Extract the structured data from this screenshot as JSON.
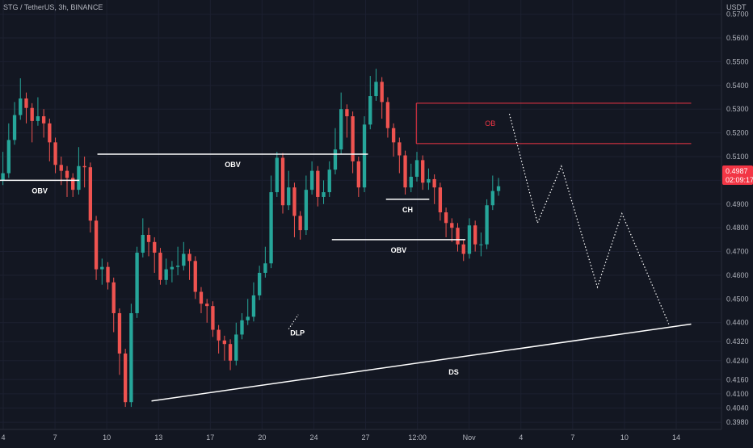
{
  "title": "STG / TetherUS, 3h, BINANCE",
  "chart_data": {
    "type": "candlestick",
    "ylabel": "USDT",
    "ylim": [
      0.395,
      0.576
    ],
    "yticks": [
      "0.5700",
      "0.5600",
      "0.5500",
      "0.5400",
      "0.5300",
      "0.5200",
      "0.5100",
      "0.5000",
      "0.4900",
      "0.4800",
      "0.4700",
      "0.4600",
      "0.4500",
      "0.4400",
      "0.4320",
      "0.4240",
      "0.4160",
      "0.4100",
      "0.4040",
      "0.3980"
    ],
    "xticks": [
      "4",
      "7",
      "10",
      "13",
      "17",
      "20",
      "24",
      "27",
      "12:00",
      "Nov",
      "4",
      "7",
      "10",
      "14"
    ],
    "price_label": {
      "value": "0.4987",
      "countdown": "02:09:17"
    },
    "price_path": [
      [
        0.51,
        0.5
      ],
      [
        0.522,
        0.512
      ],
      [
        0.531,
        0.52
      ],
      [
        0.541,
        0.532
      ],
      [
        0.535,
        0.526
      ],
      [
        0.528,
        0.518
      ],
      [
        0.533,
        0.525
      ],
      [
        0.528,
        0.52
      ],
      [
        0.518,
        0.51
      ],
      [
        0.512,
        0.505
      ],
      [
        0.508,
        0.5
      ],
      [
        0.503,
        0.495
      ],
      [
        0.501,
        0.495
      ],
      [
        0.512,
        0.5
      ],
      [
        0.508,
        0.499
      ],
      [
        0.49,
        0.48
      ],
      [
        0.465,
        0.46
      ],
      [
        0.465,
        0.458
      ],
      [
        0.462,
        0.456
      ],
      [
        0.45,
        0.438
      ],
      [
        0.43,
        0.42
      ],
      [
        0.41,
        0.407
      ],
      [
        0.446,
        0.442
      ],
      [
        0.47,
        0.465
      ],
      [
        0.482,
        0.476
      ],
      [
        0.478,
        0.47
      ],
      [
        0.472,
        0.463
      ],
      [
        0.462,
        0.458
      ],
      [
        0.465,
        0.46
      ],
      [
        0.464,
        0.459
      ],
      [
        0.47,
        0.462
      ],
      [
        0.472,
        0.466
      ],
      [
        0.468,
        0.46
      ],
      [
        0.458,
        0.452
      ],
      [
        0.45,
        0.446
      ],
      [
        0.448,
        0.442
      ],
      [
        0.442,
        0.436
      ],
      [
        0.436,
        0.429
      ],
      [
        0.432,
        0.426
      ],
      [
        0.43,
        0.422
      ],
      [
        0.438,
        0.432
      ],
      [
        0.442,
        0.436
      ],
      [
        0.448,
        0.441
      ],
      [
        0.455,
        0.448
      ],
      [
        0.462,
        0.456
      ],
      [
        0.47,
        0.464
      ],
      [
        0.5,
        0.49
      ],
      [
        0.51,
        0.505
      ],
      [
        0.495,
        0.488
      ],
      [
        0.502,
        0.492
      ],
      [
        0.488,
        0.478
      ],
      [
        0.485,
        0.477
      ],
      [
        0.5,
        0.492
      ],
      [
        0.506,
        0.498
      ],
      [
        0.499,
        0.491
      ],
      [
        0.498,
        0.492
      ],
      [
        0.506,
        0.499
      ],
      [
        0.52,
        0.51
      ],
      [
        0.535,
        0.525
      ],
      [
        0.53,
        0.52
      ],
      [
        0.515,
        0.505
      ],
      [
        0.499,
        0.495
      ],
      [
        0.525,
        0.518
      ],
      [
        0.542,
        0.533
      ],
      [
        0.545,
        0.538
      ],
      [
        0.534,
        0.528
      ],
      [
        0.528,
        0.52
      ],
      [
        0.52,
        0.512
      ],
      [
        0.512,
        0.505
      ],
      [
        0.502,
        0.496
      ],
      [
        0.505,
        0.498
      ],
      [
        0.51,
        0.503
      ],
      [
        0.504,
        0.498
      ],
      [
        0.503,
        0.498
      ],
      [
        0.498,
        0.492
      ],
      [
        0.492,
        0.485
      ],
      [
        0.486,
        0.478
      ],
      [
        0.48,
        0.476
      ],
      [
        0.478,
        0.472
      ],
      [
        0.47,
        0.468
      ],
      [
        0.482,
        0.476
      ],
      [
        0.478,
        0.472
      ],
      [
        0.476,
        0.47
      ],
      [
        0.49,
        0.485
      ],
      [
        0.5,
        0.495
      ],
      [
        0.499,
        0.496
      ]
    ],
    "annotations": [
      {
        "label": "OBV",
        "y_value": 0.5,
        "x_range": [
          0.0,
          0.11
        ]
      },
      {
        "label": "OBV",
        "y_value": 0.511,
        "x_range": [
          0.135,
          0.51
        ]
      },
      {
        "label": "OBV",
        "y_value": 0.475,
        "x_range": [
          0.46,
          0.645
        ]
      },
      {
        "label": "CH",
        "y_value": 0.492,
        "x_range": [
          0.535,
          0.595
        ]
      },
      {
        "label": "DLP",
        "y_value": 0.44,
        "x_range": [
          0.4,
          0.42
        ]
      },
      {
        "label": "OB",
        "y_range": [
          0.5155,
          0.5325
        ],
        "x_range": [
          0.577,
          0.958
        ],
        "color": "#f23645"
      },
      {
        "label": "DS",
        "from": [
          0.21,
          0.407
        ],
        "to": [
          0.958,
          0.4394
        ]
      }
    ],
    "projection_path": [
      [
        0.706,
        0.528
      ],
      [
        0.745,
        0.482
      ],
      [
        0.778,
        0.506
      ],
      [
        0.828,
        0.455
      ],
      [
        0.862,
        0.486
      ],
      [
        0.927,
        0.4394
      ]
    ],
    "colors": {
      "up": "#26a69a",
      "down": "#ef5350",
      "background": "#131722",
      "label_bg": "#f23645"
    }
  }
}
